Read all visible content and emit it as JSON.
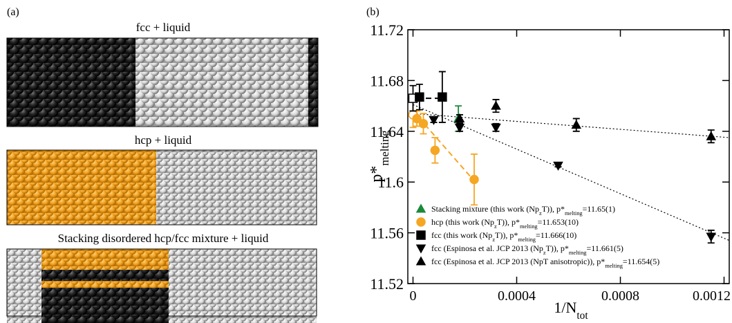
{
  "panel_a": {
    "label": "(a)",
    "captions": [
      "fcc + liquid",
      "hcp + liquid",
      "Stacking disordered hcp/fcc mixture + liquid"
    ]
  },
  "chart_data": {
    "type": "scatter",
    "panel_label": "(b)",
    "x_label": "1/N_{tot}",
    "y_label": "p*_{melting}",
    "xlim": [
      -2e-05,
      0.00122
    ],
    "xticks": [
      0,
      0.0004,
      0.0008,
      0.0012
    ],
    "ylim": [
      11.52,
      11.72
    ],
    "yticks": [
      11.52,
      11.56,
      11.6,
      11.64,
      11.68,
      11.72
    ],
    "series": [
      {
        "name": "Stacking mixture (this work (Np_{z}T)), p*_{melting}=11.65(1)",
        "color": "#1a8a3a",
        "marker": "triangle-up",
        "x": [
          0.000175
        ],
        "values": [
          11.65
        ],
        "errors": [
          0.01
        ],
        "filled": [
          true
        ]
      },
      {
        "name": "hcp (this work (Np_{z}T)), p*_{melting}=11.653(10)",
        "color": "#f5a623",
        "marker": "circle",
        "x": [
          0,
          1.5e-05,
          4e-05,
          8.5e-05,
          0.000236
        ],
        "values": [
          11.653,
          11.65,
          11.646,
          11.625,
          11.602
        ],
        "errors": [
          0.01,
          0.006,
          0.008,
          0.01,
          0.02
        ],
        "filled": [
          false,
          true,
          true,
          true,
          true
        ]
      },
      {
        "name": "fcc (this work (Np_{z}T)), p*_{melting}=11.666(10)",
        "color": "#000000",
        "marker": "square",
        "x": [
          0,
          2.5e-05,
          0.000113
        ],
        "values": [
          11.666,
          11.667,
          11.667
        ],
        "errors": [
          0.01,
          0.01,
          0.02
        ],
        "filled": [
          false,
          true,
          true
        ]
      },
      {
        "name": "fcc (Espinosa et al. JCP 2013 (Np_{z}T)), p*_{melting}=11.661(5)",
        "color": "#000000",
        "marker": "triangle-down",
        "x": [
          8e-05,
          0.00018,
          0.00032,
          0.00056,
          0.00115
        ],
        "values": [
          11.649,
          11.643,
          11.643,
          11.613,
          11.557
        ],
        "errors": [
          0.002,
          0.003,
          0.003,
          0.001,
          0.005
        ],
        "filled": [
          true,
          true,
          true,
          true,
          true
        ]
      },
      {
        "name": "fcc (Espinosa et al. JCP 2013 (NpT anisotropic)), p*_{melting}=11.654(5)",
        "color": "#000000",
        "marker": "triangle-up",
        "x": [
          0.00018,
          0.00032,
          0.00063,
          0.00115
        ],
        "values": [
          11.65,
          11.66,
          11.645,
          11.636
        ],
        "errors": [
          0.003,
          0.005,
          0.005,
          0.005
        ],
        "filled": [
          true,
          true,
          true,
          true
        ]
      }
    ],
    "fits": [
      {
        "color": "#f5a623",
        "style": "dashed",
        "x": [
          0,
          0.00024
        ],
        "values": [
          11.656,
          11.6
        ]
      },
      {
        "color": "#000000",
        "style": "dashed",
        "x": [
          -2e-05,
          0.000113
        ],
        "values": [
          11.666,
          11.666
        ]
      },
      {
        "color": "#000000",
        "style": "dotted",
        "x": [
          0,
          0.00122
        ],
        "values": [
          11.654,
          11.635
        ]
      },
      {
        "color": "#000000",
        "style": "dotted",
        "x": [
          0,
          0.00122
        ],
        "values": [
          11.661,
          11.554
        ]
      }
    ]
  }
}
